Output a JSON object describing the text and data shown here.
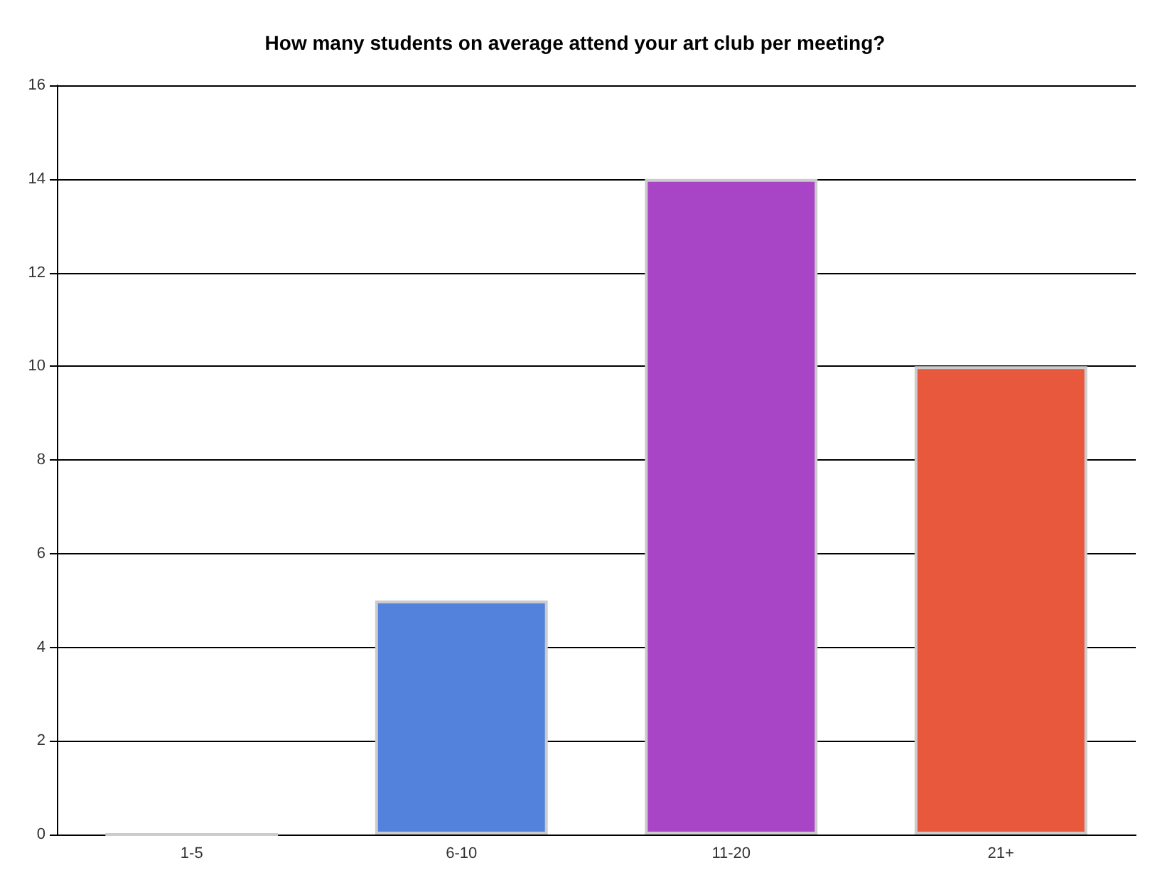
{
  "chart_data": {
    "type": "bar",
    "title": "How many students on average attend your art club per meeting?",
    "categories": [
      "1-5",
      "6-10",
      "11-20",
      "21+"
    ],
    "values": [
      0,
      5,
      14,
      10
    ],
    "colors": [
      "#cccccc",
      "#5282dc",
      "#a845c6",
      "#e8583c"
    ],
    "ylim": [
      0,
      16
    ],
    "yticks": [
      0,
      2,
      4,
      6,
      8,
      10,
      12,
      14,
      16
    ],
    "grid": "y"
  }
}
